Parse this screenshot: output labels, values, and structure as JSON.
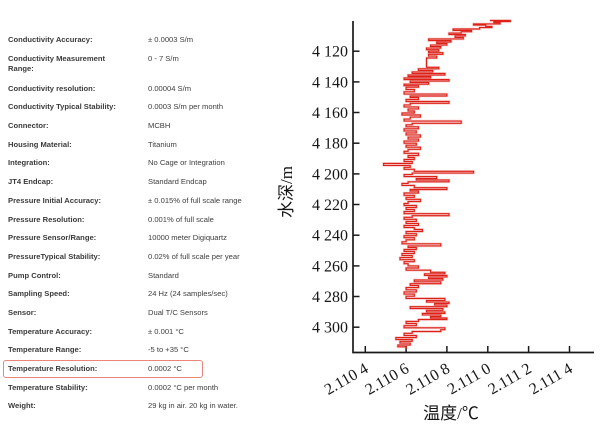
{
  "spec_table": {
    "highlight_color": "#e9857b",
    "rows": [
      {
        "label": "Conductivity Accuracy:",
        "value": "± 0.0003 S/m"
      },
      {
        "label": "Conductivity Measurement\nRange:",
        "value": "0 - 7 S/m"
      },
      {
        "label": "Conductivity resolution:",
        "value": "0.00004 S/m"
      },
      {
        "label": "Conductivity Typical Stability:",
        "value": "0.0003 S/m per month"
      },
      {
        "label": "Connector:",
        "value": "MCBH"
      },
      {
        "label": "Housing Material:",
        "value": "Titanium"
      },
      {
        "label": "Integration:",
        "value": "No Cage or Integration"
      },
      {
        "label": "JT4 Endcap:",
        "value": "Standard Endcap"
      },
      {
        "label": "Pressure Initial Accuracy:",
        "value": "± 0.015% of full scale range"
      },
      {
        "label": "Pressure Resolution:",
        "value": "0.001% of full scale"
      },
      {
        "label": "Pressure Sensor/Range:",
        "value": "10000 meter Digiquartz"
      },
      {
        "label": "PressureTypical Stability:",
        "value": "0.02% of full scale per year"
      },
      {
        "label": "Pump Control:",
        "value": "Standard"
      },
      {
        "label": "Sampling Speed:",
        "value": "24 Hz (24 samples/sec)"
      },
      {
        "label": "Sensor:",
        "value": "Dual T/C Sensors"
      },
      {
        "label": "Temperature Accuracy:",
        "value": "± 0.001 °C"
      },
      {
        "label": "Temperature Range:",
        "value": "-5 to +35 °C"
      },
      {
        "label": "Temperature Resolution:",
        "value": "0.0002 °C",
        "highlighted": true
      },
      {
        "label": "Temperature Stability:",
        "value": "0.0002 °C per month"
      },
      {
        "label": "Weight:",
        "value": "29 kg in air. 20 kg in water."
      }
    ]
  },
  "chart_data": {
    "type": "line",
    "title": "",
    "xlabel": "温度/℃",
    "ylabel": "水深/m",
    "grid": false,
    "legend": "none",
    "line_color": "#dc2118",
    "xlim": [
      2.11034,
      2.11152
    ],
    "ylim": [
      4100.3,
      4316.5
    ],
    "y_axis_inverted_depth": true,
    "x_ticks": [
      {
        "value": 2.1104,
        "label": "2.110 4"
      },
      {
        "value": 2.1106,
        "label": "2.110 6"
      },
      {
        "value": 2.1108,
        "label": "2.110 8"
      },
      {
        "value": 2.111,
        "label": "2.111 0"
      },
      {
        "value": 2.1112,
        "label": "2.111 2"
      },
      {
        "value": 2.1114,
        "label": "2.111 4"
      }
    ],
    "y_ticks": [
      {
        "value": 4120,
        "label": "4 120"
      },
      {
        "value": 4140,
        "label": "4 140"
      },
      {
        "value": 4160,
        "label": "4 160"
      },
      {
        "value": 4180,
        "label": "4 180"
      },
      {
        "value": 4200,
        "label": "4 200"
      },
      {
        "value": 4220,
        "label": "4 220"
      },
      {
        "value": 4240,
        "label": "4 240"
      },
      {
        "value": 4260,
        "label": "4 260"
      },
      {
        "value": 4280,
        "label": "4 280"
      },
      {
        "value": 4300,
        "label": "4 300"
      }
    ],
    "series": [
      {
        "name": "temperature-depth-profile",
        "points_format": [
          "depth_m",
          "temperature_C"
        ],
        "points": [
          [
            4100.0,
            2.11101
          ],
          [
            4100.6,
            2.11111
          ],
          [
            4101.4,
            2.11103
          ],
          [
            4102.2,
            2.11106
          ],
          [
            4103.0,
            2.11093
          ],
          [
            4103.8,
            2.11099
          ],
          [
            4104.6,
            2.11102
          ],
          [
            4105.5,
            2.11096
          ],
          [
            4106.4,
            2.11083
          ],
          [
            4107.3,
            2.11092
          ],
          [
            4108.2,
            2.11087
          ],
          [
            4109.1,
            2.11081
          ],
          [
            4110.0,
            2.11089
          ],
          [
            4111.0,
            2.11084
          ],
          [
            4112.0,
            2.11088
          ],
          [
            4113.0,
            2.11071
          ],
          [
            4114.0,
            2.11082
          ],
          [
            4115.0,
            2.11075
          ],
          [
            4116.0,
            2.1108
          ],
          [
            4117.0,
            2.11072
          ],
          [
            4118.0,
            2.11077
          ],
          [
            4119.0,
            2.1107
          ],
          [
            4120.0,
            2.11076
          ],
          [
            4121.0,
            2.11071
          ],
          [
            4122.0,
            2.11078
          ],
          [
            4123.2,
            2.11071
          ],
          [
            4124.4,
            2.11075
          ],
          [
            4125.6,
            2.1107
          ],
          [
            4130.5,
            2.1107
          ],
          [
            4131.5,
            2.11076
          ],
          [
            4132.5,
            2.11066
          ],
          [
            4133.5,
            2.11073
          ],
          [
            4134.5,
            2.11063
          ],
          [
            4135.5,
            2.11079
          ],
          [
            4136.5,
            2.11061
          ],
          [
            4137.5,
            2.11072
          ],
          [
            4138.5,
            2.11059
          ],
          [
            4139.5,
            2.11081
          ],
          [
            4140.5,
            2.11062
          ],
          [
            4141.5,
            2.11071
          ],
          [
            4142.5,
            2.11059
          ],
          [
            4143.5,
            2.11066
          ],
          [
            4145.0,
            2.1106
          ],
          [
            4146.5,
            2.11064
          ],
          [
            4148.0,
            2.11059
          ],
          [
            4149.2,
            2.1108
          ],
          [
            4150.2,
            2.11062
          ],
          [
            4151.5,
            2.11066
          ],
          [
            4152.8,
            2.1106
          ],
          [
            4154.0,
            2.11081
          ],
          [
            4155.0,
            2.11062
          ],
          [
            4156.3,
            2.11059
          ],
          [
            4157.6,
            2.11066
          ],
          [
            4159.0,
            2.11061
          ],
          [
            4160.3,
            2.11064
          ],
          [
            4161.6,
            2.11058
          ],
          [
            4163.0,
            2.11067
          ],
          [
            4164.3,
            2.11062
          ],
          [
            4165.6,
            2.11059
          ],
          [
            4167.0,
            2.11087
          ],
          [
            4168.0,
            2.11063
          ],
          [
            4169.3,
            2.1106
          ],
          [
            4170.6,
            2.11066
          ],
          [
            4172.0,
            2.11059
          ],
          [
            4173.3,
            2.11065
          ],
          [
            4174.6,
            2.1106
          ],
          [
            4176.0,
            2.11067
          ],
          [
            4177.3,
            2.11061
          ],
          [
            4178.6,
            2.11066
          ],
          [
            4180.0,
            2.11059
          ],
          [
            4181.3,
            2.11065
          ],
          [
            4182.6,
            2.1106
          ],
          [
            4184.0,
            2.11067
          ],
          [
            4185.3,
            2.11061
          ],
          [
            4186.6,
            2.11059
          ],
          [
            4188.0,
            2.11066
          ],
          [
            4189.3,
            2.11061
          ],
          [
            4190.6,
            2.11064
          ],
          [
            4192.0,
            2.11059
          ],
          [
            4193.2,
            2.11063
          ],
          [
            4194.5,
            2.11049
          ],
          [
            4195.7,
            2.11062
          ],
          [
            4197.0,
            2.11059
          ],
          [
            4198.3,
            2.11064
          ],
          [
            4199.5,
            2.11093
          ],
          [
            4200.5,
            2.11063
          ],
          [
            4201.8,
            2.11059
          ],
          [
            4203.0,
            2.11075
          ],
          [
            4204.0,
            2.11065
          ],
          [
            4205.2,
            2.11081
          ],
          [
            4206.2,
            2.11061
          ],
          [
            4207.5,
            2.11058
          ],
          [
            4209.0,
            2.11064
          ],
          [
            4210.2,
            2.1108
          ],
          [
            4211.2,
            2.11062
          ],
          [
            4212.5,
            2.11066
          ],
          [
            4214.0,
            2.11059
          ],
          [
            4215.3,
            2.11064
          ],
          [
            4216.6,
            2.1106
          ],
          [
            4218.0,
            2.11067
          ],
          [
            4219.3,
            2.11061
          ],
          [
            4220.6,
            2.11059
          ],
          [
            4222.0,
            2.11065
          ],
          [
            4223.3,
            2.1106
          ],
          [
            4224.6,
            2.11064
          ],
          [
            4226.0,
            2.11059
          ],
          [
            4227.3,
            2.11081
          ],
          [
            4228.3,
            2.11063
          ],
          [
            4229.6,
            2.11059
          ],
          [
            4231.0,
            2.11065
          ],
          [
            4232.3,
            2.1106
          ],
          [
            4233.6,
            2.11066
          ],
          [
            4235.0,
            2.11059
          ],
          [
            4236.3,
            2.11064
          ],
          [
            4237.6,
            2.11068
          ],
          [
            4239.0,
            2.1106
          ],
          [
            4240.3,
            2.11065
          ],
          [
            4241.6,
            2.11059
          ],
          [
            4243.0,
            2.11064
          ],
          [
            4244.3,
            2.1106
          ],
          [
            4245.6,
            2.11058
          ],
          [
            4247.0,
            2.11077
          ],
          [
            4248.0,
            2.11061
          ],
          [
            4249.3,
            2.11065
          ],
          [
            4250.6,
            2.11059
          ],
          [
            4252.0,
            2.11064
          ],
          [
            4253.3,
            2.11058
          ],
          [
            4254.6,
            2.11063
          ],
          [
            4256.0,
            2.11057
          ],
          [
            4257.3,
            2.11064
          ],
          [
            4258.6,
            2.11059
          ],
          [
            4260.0,
            2.11061
          ],
          [
            4261.4,
            2.11066
          ],
          [
            4262.8,
            2.1106
          ],
          [
            4264.2,
            2.11072
          ],
          [
            4265.2,
            2.11079
          ],
          [
            4266.2,
            2.11069
          ],
          [
            4267.2,
            2.1108
          ],
          [
            4268.2,
            2.11071
          ],
          [
            4269.2,
            2.11078
          ],
          [
            4270.4,
            2.11064
          ],
          [
            4271.6,
            2.11077
          ],
          [
            4272.8,
            2.11062
          ],
          [
            4274.2,
            2.11066
          ],
          [
            4275.6,
            2.1106
          ],
          [
            4277.0,
            2.11065
          ],
          [
            4278.4,
            2.11059
          ],
          [
            4279.8,
            2.11064
          ],
          [
            4281.2,
            2.1106
          ],
          [
            4282.6,
            2.11079
          ],
          [
            4283.6,
            2.1107
          ],
          [
            4284.6,
            2.11081
          ],
          [
            4285.6,
            2.11074
          ],
          [
            4286.6,
            2.1108
          ],
          [
            4287.8,
            2.11062
          ],
          [
            4289.0,
            2.11078
          ],
          [
            4290.0,
            2.1107
          ],
          [
            4291.0,
            2.11079
          ],
          [
            4292.0,
            2.11068
          ],
          [
            4293.0,
            2.11077
          ],
          [
            4294.0,
            2.11072
          ],
          [
            4295.0,
            2.1108
          ],
          [
            4296.2,
            2.11066
          ],
          [
            4297.6,
            2.1106
          ],
          [
            4299.0,
            2.11065
          ],
          [
            4300.4,
            2.11059
          ],
          [
            4301.6,
            2.11079
          ],
          [
            4302.8,
            2.11077
          ],
          [
            4304.0,
            2.11063
          ],
          [
            4305.4,
            2.11059
          ],
          [
            4306.8,
            2.11065
          ],
          [
            4308.0,
            2.11055
          ],
          [
            4309.2,
            2.11063
          ],
          [
            4310.4,
            2.11057
          ],
          [
            4311.6,
            2.11062
          ],
          [
            4312.8,
            2.11056
          ],
          [
            4314.0,
            2.1106
          ]
        ]
      }
    ]
  }
}
